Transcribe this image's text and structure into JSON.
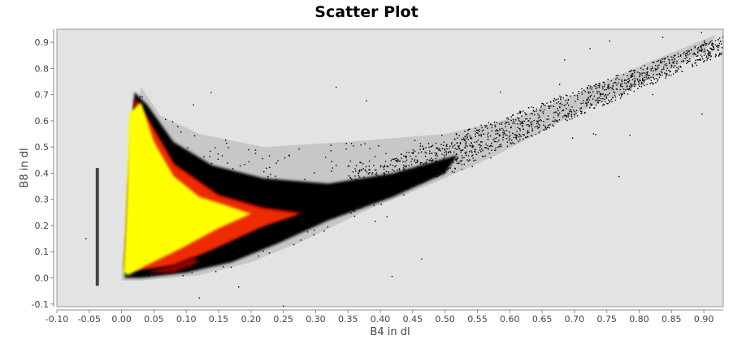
{
  "chart_data": {
    "type": "scatter",
    "title": "Scatter Plot",
    "xlabel": "B4 in dl",
    "ylabel": "B8 in dl",
    "xlim": [
      -0.1,
      0.93
    ],
    "ylim": [
      -0.11,
      0.95
    ],
    "x_ticks": [
      "-0.10",
      "-0.05",
      "0.00",
      "0.05",
      "0.10",
      "0.15",
      "0.20",
      "0.25",
      "0.30",
      "0.35",
      "0.40",
      "0.45",
      "0.50",
      "0.55",
      "0.60",
      "0.65",
      "0.70",
      "0.75",
      "0.80",
      "0.85",
      "0.90"
    ],
    "y_ticks": [
      "-0.1",
      "0.0",
      "0.1",
      "0.2",
      "0.3",
      "0.4",
      "0.5",
      "0.6",
      "0.7",
      "0.8",
      "0.9"
    ],
    "grid": false,
    "density": true,
    "density_colors": [
      "#000000",
      "#8b0000",
      "#ff3000",
      "#ffff00"
    ],
    "plot_background": "#e3e3e3",
    "regions": {
      "sparse_cloud": [
        [
          0.03,
          0.73
        ],
        [
          0.06,
          0.62
        ],
        [
          0.12,
          0.55
        ],
        [
          0.22,
          0.5
        ],
        [
          0.35,
          0.52
        ],
        [
          0.5,
          0.55
        ],
        [
          0.62,
          0.62
        ],
        [
          0.72,
          0.72
        ],
        [
          0.82,
          0.83
        ],
        [
          0.92,
          0.93
        ],
        [
          0.9,
          0.86
        ],
        [
          0.8,
          0.74
        ],
        [
          0.68,
          0.6
        ],
        [
          0.58,
          0.47
        ],
        [
          0.48,
          0.36
        ],
        [
          0.38,
          0.26
        ],
        [
          0.28,
          0.14
        ],
        [
          0.2,
          0.06
        ],
        [
          0.12,
          0.01
        ],
        [
          0.03,
          -0.01
        ],
        [
          0.0,
          -0.01
        ],
        [
          0.0,
          0.05
        ],
        [
          0.01,
          0.3
        ],
        [
          0.02,
          0.6
        ]
      ],
      "dense_band": [
        [
          0.02,
          0.71
        ],
        [
          0.04,
          0.66
        ],
        [
          0.08,
          0.52
        ],
        [
          0.14,
          0.43
        ],
        [
          0.22,
          0.38
        ],
        [
          0.32,
          0.36
        ],
        [
          0.42,
          0.4
        ],
        [
          0.52,
          0.47
        ],
        [
          0.5,
          0.4
        ],
        [
          0.42,
          0.31
        ],
        [
          0.32,
          0.22
        ],
        [
          0.24,
          0.13
        ],
        [
          0.17,
          0.06
        ],
        [
          0.1,
          0.02
        ],
        [
          0.03,
          0.0
        ],
        [
          0.005,
          0.0
        ],
        [
          0.01,
          0.3
        ]
      ],
      "red_band": [
        [
          0.02,
          0.69
        ],
        [
          0.04,
          0.61
        ],
        [
          0.08,
          0.44
        ],
        [
          0.15,
          0.32
        ],
        [
          0.22,
          0.27
        ],
        [
          0.28,
          0.25
        ],
        [
          0.22,
          0.2
        ],
        [
          0.14,
          0.11
        ],
        [
          0.08,
          0.05
        ],
        [
          0.02,
          0.03
        ],
        [
          0.005,
          0.04
        ],
        [
          0.01,
          0.35
        ]
      ],
      "yellow_core": [
        [
          0.012,
          0.63
        ],
        [
          0.03,
          0.67
        ],
        [
          0.05,
          0.52
        ],
        [
          0.08,
          0.39
        ],
        [
          0.12,
          0.31
        ],
        [
          0.17,
          0.27
        ],
        [
          0.2,
          0.245
        ],
        [
          0.15,
          0.19
        ],
        [
          0.09,
          0.11
        ],
        [
          0.04,
          0.05
        ],
        [
          0.01,
          0.01
        ],
        [
          0.003,
          0.02
        ],
        [
          0.008,
          0.3
        ]
      ],
      "low_blob": [
        [
          0.04,
          0.02
        ],
        [
          0.08,
          0.05
        ],
        [
          0.11,
          0.08
        ],
        [
          0.12,
          0.06
        ],
        [
          0.08,
          0.02
        ]
      ],
      "left_streak": [
        [
          -0.04,
          0.42
        ],
        [
          -0.035,
          0.42
        ],
        [
          -0.035,
          -0.03
        ],
        [
          -0.04,
          -0.03
        ]
      ]
    }
  }
}
